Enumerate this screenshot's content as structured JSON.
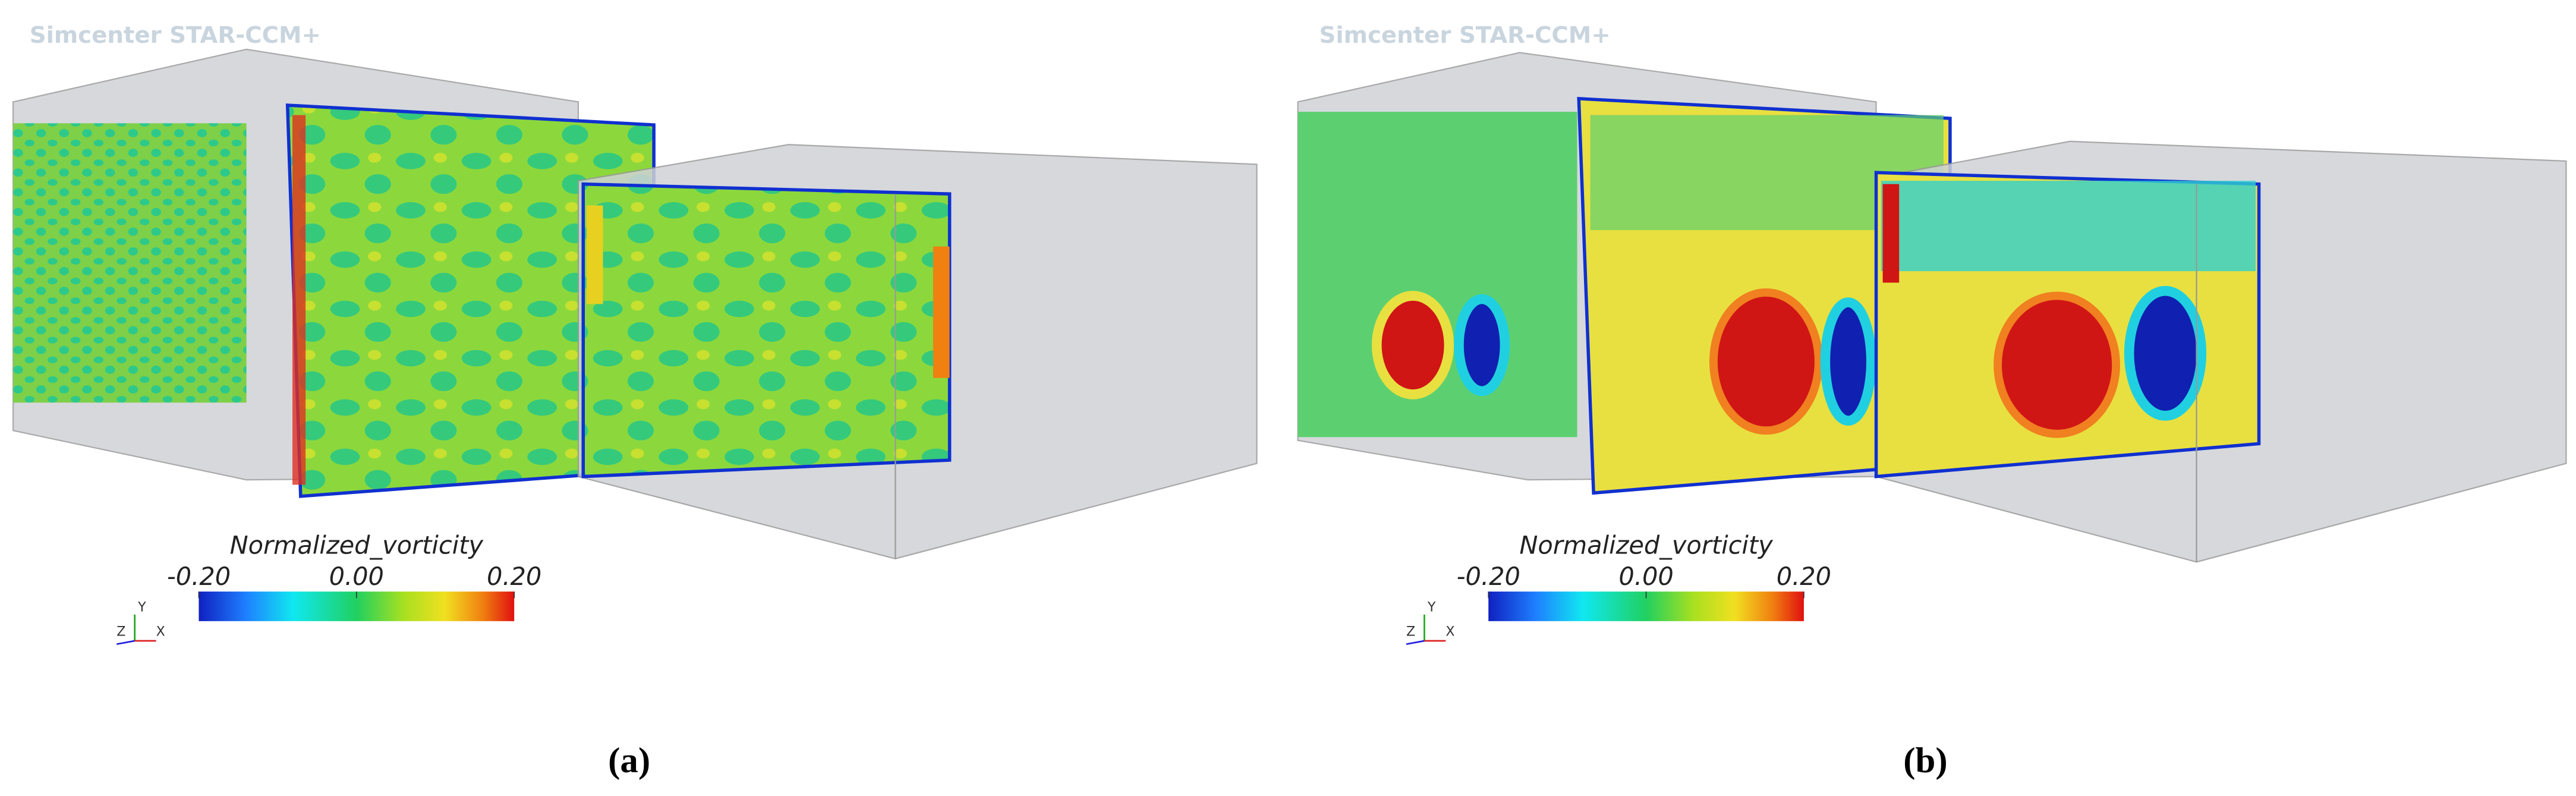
{
  "panels": [
    {
      "logo": "Simcenter STAR-CCM+",
      "colorbar": {
        "title": "Normalized_vorticity",
        "lim": [
          -0.2,
          0.2
        ],
        "ticks": [
          {
            "value": -0.2,
            "label": "-0.20"
          },
          {
            "value": 0,
            "label": "0.00"
          },
          {
            "value": 0.2,
            "label": "0.20"
          }
        ]
      },
      "axes": {
        "y": "Y",
        "z": "Z",
        "x": "X"
      },
      "caption": "(a)"
    },
    {
      "logo": "Simcenter STAR-CCM+",
      "colorbar": {
        "title": "Normalized_vorticity",
        "lim": [
          -0.2,
          0.2
        ],
        "ticks": [
          {
            "value": -0.2,
            "label": "-0.20"
          },
          {
            "value": 0,
            "label": "0.00"
          },
          {
            "value": 0.2,
            "label": "0.20"
          }
        ]
      },
      "axes": {
        "y": "Y",
        "z": "Z",
        "x": "X"
      },
      "caption": "(b)"
    }
  ]
}
